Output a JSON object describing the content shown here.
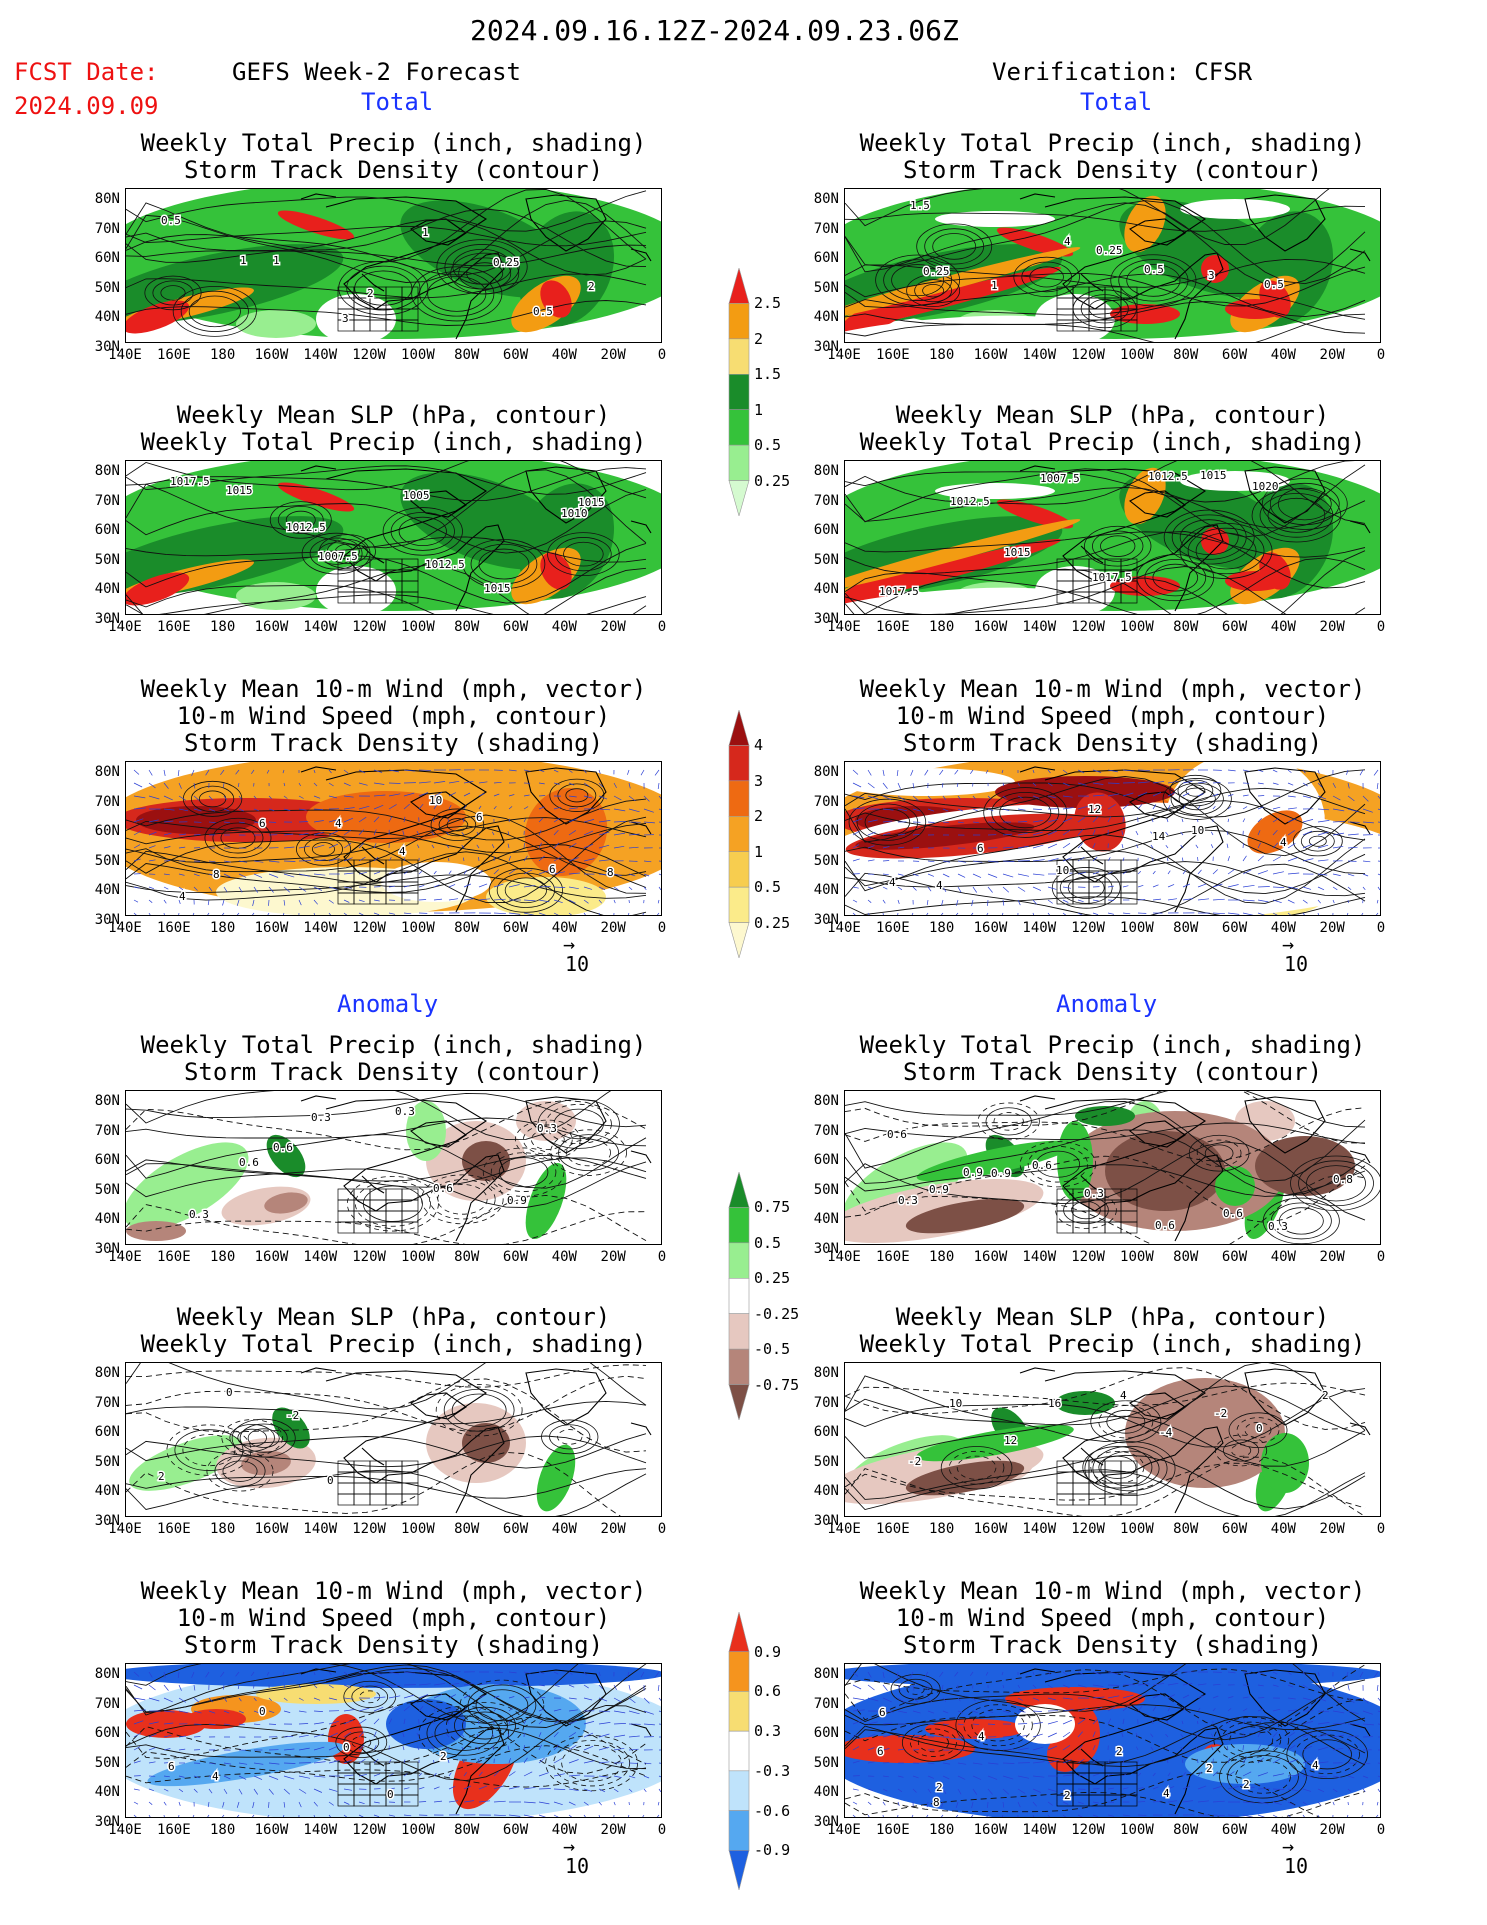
{
  "header": {
    "date_range": "2024.09.16.12Z-2024.09.23.06Z",
    "fcst_label": "FCST Date:",
    "fcst_date": "2024.09.09",
    "left_title": "GEFS Week-2 Forecast",
    "right_title": "Verification: CFSR",
    "total_label": "Total",
    "anomaly_label": "Anomaly"
  },
  "panel_titles": {
    "precip_track": [
      "Weekly Total Precip (inch, shading)",
      "Storm Track Density (contour)"
    ],
    "slp_precip": [
      "Weekly Mean SLP (hPa, contour)",
      "Weekly Total Precip (inch, shading)"
    ],
    "wind_track": [
      "Weekly Mean 10-m Wind (mph, vector)",
      "10-m Wind Speed (mph, contour)",
      "Storm Track Density (shading)"
    ]
  },
  "axes": {
    "lat_labels": [
      "80N",
      "70N",
      "60N",
      "50N",
      "40N",
      "30N"
    ],
    "lon_labels": [
      "140E",
      "160E",
      "180",
      "160W",
      "140W",
      "120W",
      "100W",
      "80W",
      "60W",
      "40W",
      "20W",
      "0"
    ]
  },
  "vector_scale": "10",
  "colorbars": {
    "total_precip": {
      "labels": [
        "2.5",
        "2",
        "1.5",
        "1",
        "0.5",
        "0.25"
      ],
      "colors": [
        "#e8201c",
        "#f39c12",
        "#f7dd72",
        "#1a8c2a",
        "#35c23a",
        "#98ee90",
        "#d5fad0"
      ]
    },
    "total_track": {
      "labels": [
        "4",
        "3",
        "2",
        "1",
        "0.5",
        "0.25"
      ],
      "colors": [
        "#9b1010",
        "#d6281c",
        "#ee6a12",
        "#f5a223",
        "#f7cd4f",
        "#fbeb8a",
        "#fdf8cf"
      ]
    },
    "anom_precip": {
      "labels": [
        "0.75",
        "0.5",
        "0.25",
        "-0.25",
        "-0.5",
        "-0.75"
      ],
      "colors": [
        "#1a8c2a",
        "#35c23a",
        "#98ee90",
        "#ffffff",
        "#e6c8c0",
        "#b5857a",
        "#7d5046"
      ]
    },
    "anom_track": {
      "labels": [
        "0.9",
        "0.6",
        "0.3",
        "-0.3",
        "-0.6",
        "-0.9"
      ],
      "colors": [
        "#e8301c",
        "#f5941e",
        "#f7dd72",
        "#ffffff",
        "#bfe3fb",
        "#55a8f0",
        "#1e60e0"
      ]
    }
  },
  "contour_labels": {
    "gefs_total_precip": [
      "0.5",
      "1",
      "1",
      "3",
      "2",
      "1",
      "0.25",
      "0.5",
      "2"
    ],
    "cfsr_total_precip": [
      "1.5",
      "0.25",
      "1",
      "4",
      "0.25",
      "0.5",
      "3",
      "0.5"
    ],
    "gefs_total_slp": [
      "1017.5",
      "1015",
      "1012.5",
      "1007.5",
      "1005",
      "1012.5",
      "1015",
      "1010",
      "1015"
    ],
    "cfsr_total_slp": [
      "1017.5",
      "1012.5",
      "1015",
      "1007.5",
      "1017.5",
      "1012.5",
      "1015",
      "1020"
    ],
    "gefs_total_wind": [
      "4",
      "8",
      "6",
      "4",
      "4",
      "10",
      "6",
      "6",
      "8"
    ],
    "cfsr_total_wind": [
      "4",
      "4",
      "6",
      "10",
      "12",
      "14",
      "10",
      "4"
    ],
    "gefs_anom_precip": [
      "0.3",
      "0.6",
      "0.6",
      "0.3",
      "0.3",
      "0.6",
      "0.9",
      "0.3"
    ],
    "cfsr_anom_precip": [
      "0.3",
      "0.9",
      "0.9",
      "0.6",
      "0.3",
      "0.6",
      "0.6",
      "0.3",
      "0.8",
      "0.6",
      "0.9"
    ],
    "gefs_anom_slp": [
      "2",
      "0",
      "-2",
      "0"
    ],
    "cfsr_anom_slp": [
      "-2",
      "10",
      "12",
      "16",
      "4",
      "-4",
      "-2",
      "0",
      "2"
    ],
    "gefs_anom_wind": [
      "6",
      "4",
      "0",
      "0",
      "0",
      "2"
    ],
    "cfsr_anom_wind": [
      "6",
      "2",
      "4",
      "2",
      "2",
      "4",
      "2",
      "2",
      "4",
      "6",
      "8"
    ]
  }
}
